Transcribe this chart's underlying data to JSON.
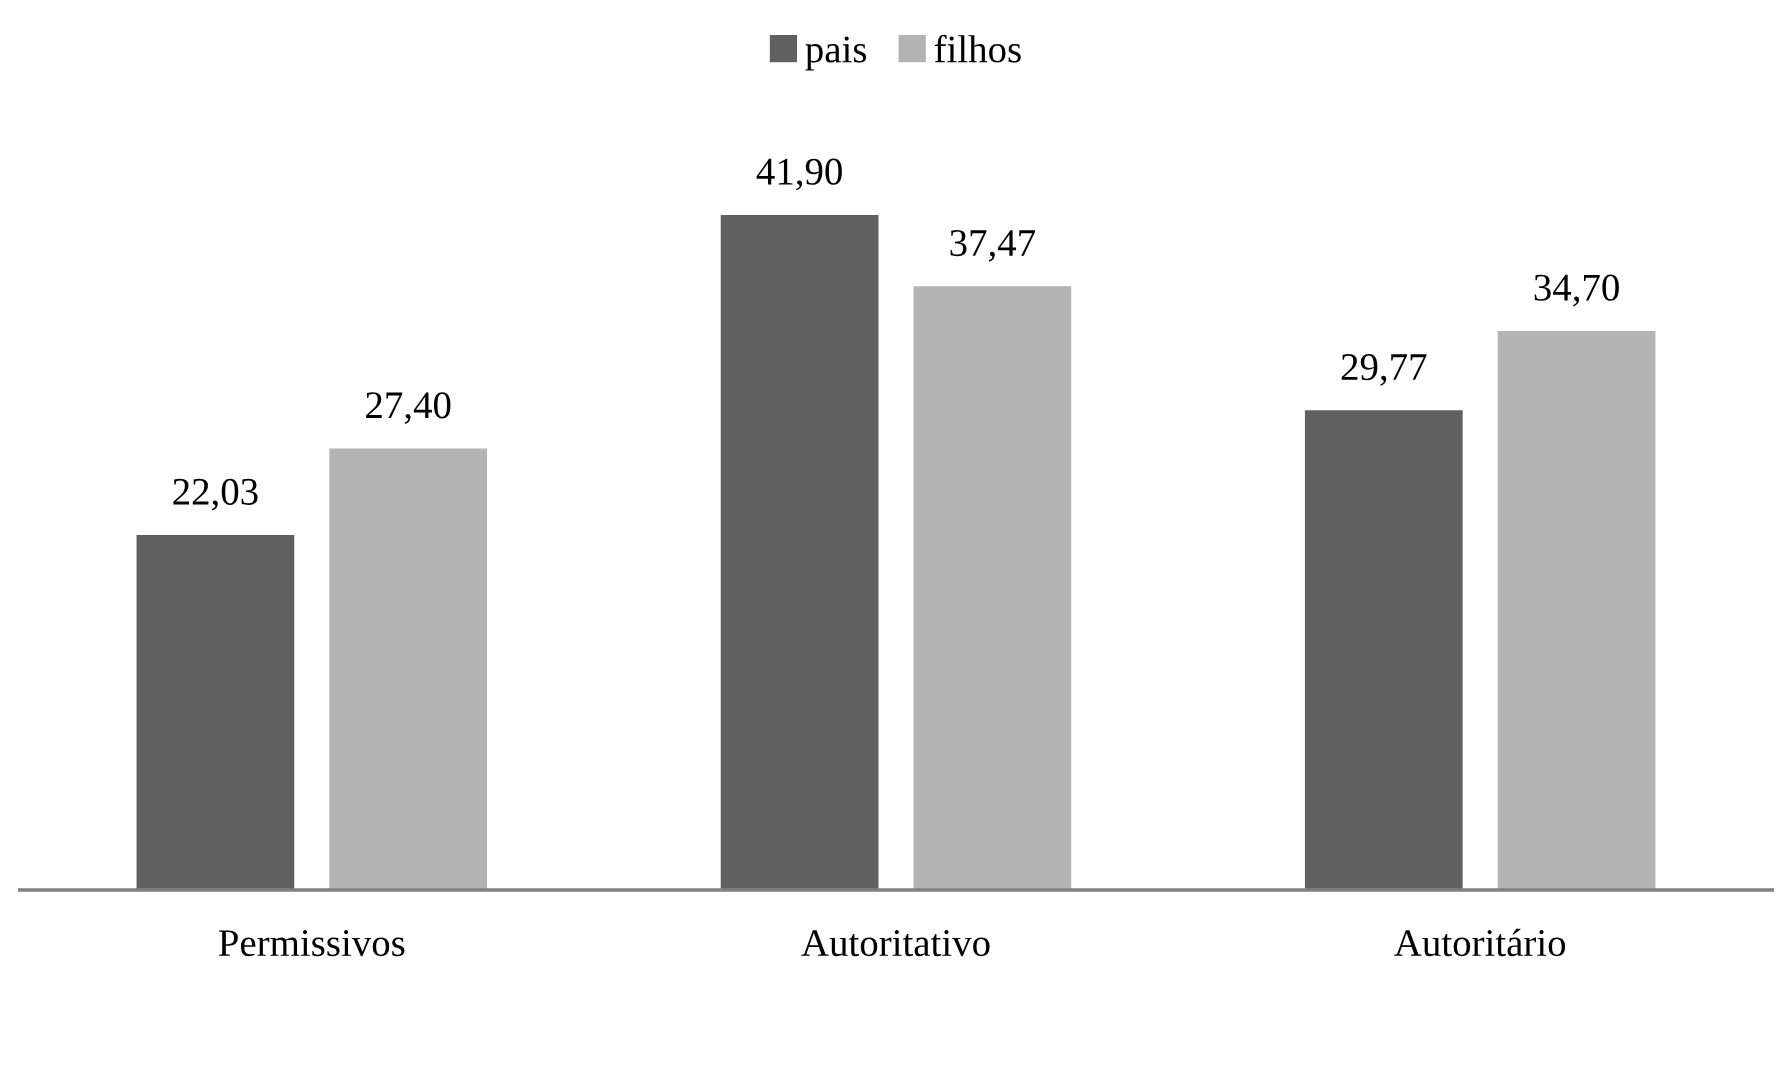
{
  "chart_data": {
    "type": "bar",
    "categories": [
      "Permissivos",
      "Autoritativo",
      "Autoritário"
    ],
    "series": [
      {
        "name": "pais",
        "color": "#606060",
        "values": [
          22.03,
          41.9,
          29.77
        ],
        "value_labels": [
          "22,03",
          "41,90",
          "29,77"
        ]
      },
      {
        "name": "filhos",
        "color": "#b3b3b3",
        "values": [
          27.4,
          37.47,
          34.7
        ],
        "value_labels": [
          "27,40",
          "37,47",
          "34,70"
        ]
      }
    ],
    "legend": "top",
    "grid": false
  }
}
